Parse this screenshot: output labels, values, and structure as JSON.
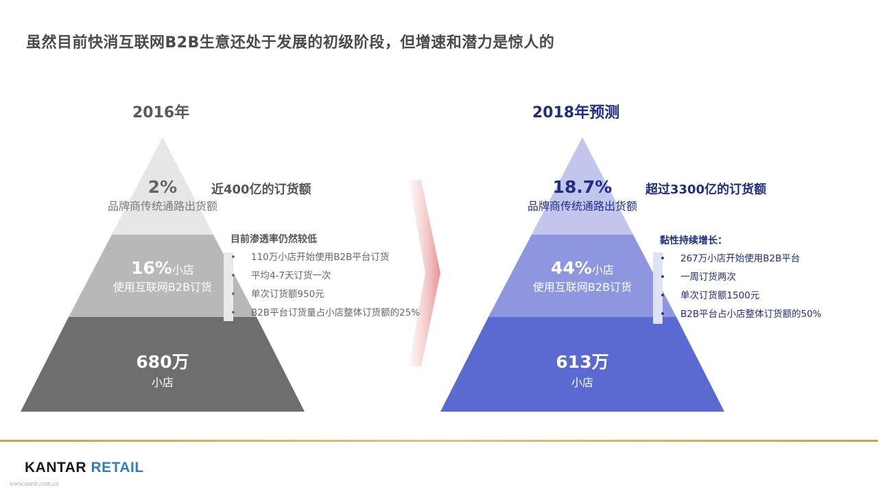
{
  "title": "虽然目前快消互联网B2B生意还处于发展的初级阶段，但增速和潜力是惊人的",
  "left": {
    "heading": "2016年",
    "top_pct": "2%",
    "top_desc": "品牌商传统通路出货额",
    "mid_pct": "16%",
    "mid_unit": "小店",
    "mid_desc": "使用互联网B2B订货",
    "base_value": "680万",
    "base_unit": "小店",
    "callout": "近400亿的订货额",
    "bullet_title": "目前渗透率仍然较低",
    "bullets": [
      "110万小店开始使用B2B平台订货",
      "平均4-7天订货一次",
      "单次订货额950元",
      "B2B平台订货量占小店整体订货额的25%"
    ]
  },
  "right": {
    "heading": "2018年预测",
    "top_pct": "18.7%",
    "top_desc": "品牌商传统通路出货额",
    "mid_pct": "44%",
    "mid_unit": "小店",
    "mid_desc": "使用互联网B2B订货",
    "base_value": "613万",
    "base_unit": "小店",
    "callout": "超过3300亿的订货额",
    "bullet_title": "黏性持续增长：",
    "bullets": [
      "267万小店开始使用B2B平台",
      "一周订货两次",
      "单次订货额1500元",
      "B2B平台占小店整体订货额的50%"
    ]
  },
  "colors": {
    "left_top": "#e6e6e6",
    "left_mid": "#b8b8b8",
    "left_base": "#6e6e6e",
    "right_top": "#c2c6ec",
    "right_mid": "#8d96de",
    "right_base": "#5a6ad0",
    "right_accent": "#1f2d86",
    "gold": "#c9a24a"
  },
  "footer": {
    "brand_part1": "KANTAR",
    "brand_part2": "RETAIL",
    "watermark": "www.useit.com.cn"
  }
}
